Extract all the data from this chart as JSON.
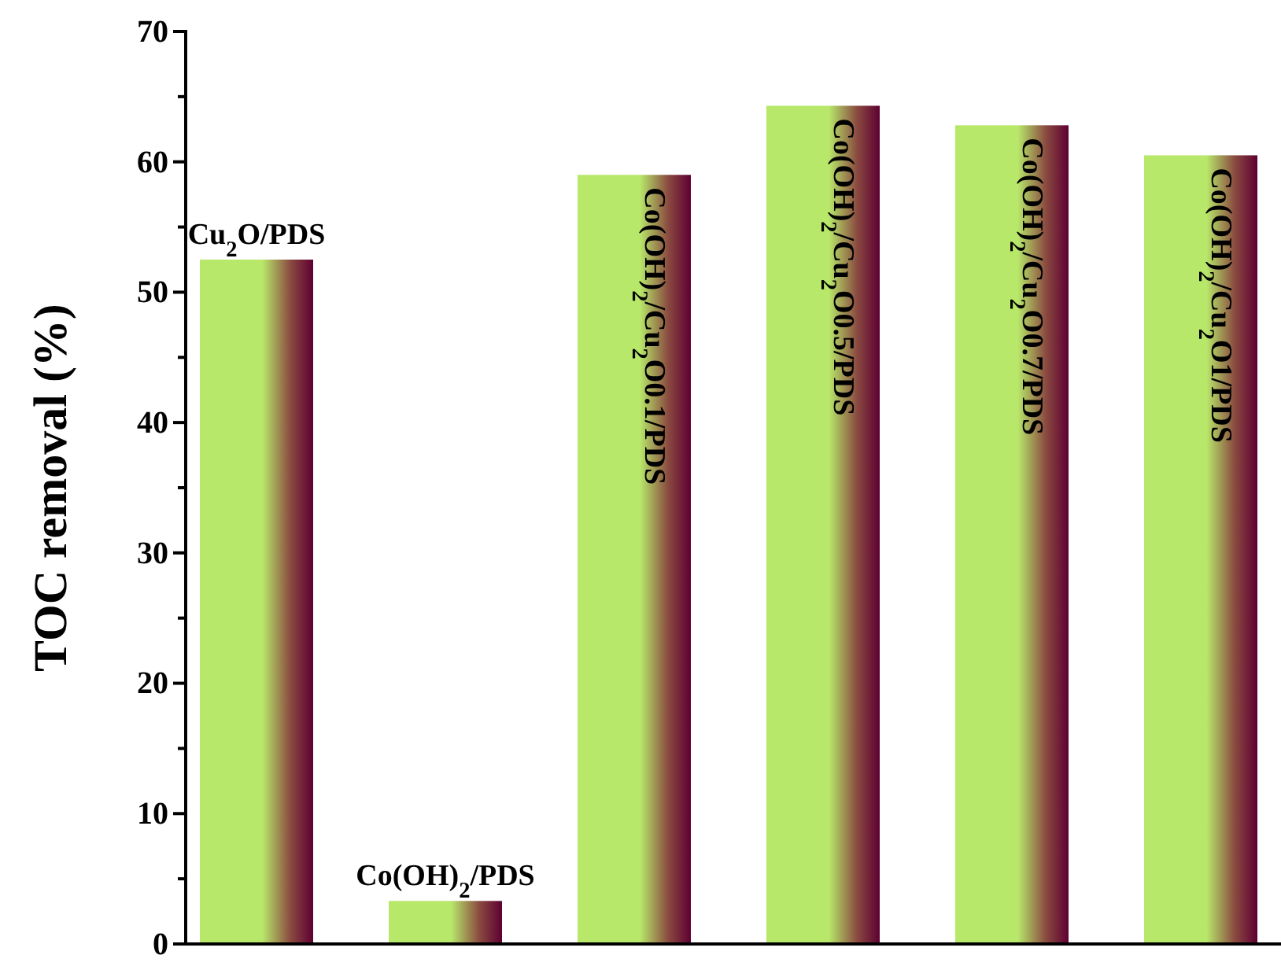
{
  "chart_data": {
    "type": "bar",
    "ylabel": "TOC removal (%)",
    "categories": [
      "Cu$_{2}$O/PDS",
      "Co(OH)$_{2}$/PDS",
      "Co(OH)$_{2}$/Cu$_{2}$O0.1/PDS",
      "Co(OH)$_{2}$/Cu$_{2}$O0.5/PDS",
      "Co(OH)$_{2}$/Cu$_{2}$O0.7/PDS",
      "Co(OH)$_{2}$/Cu$_{2}$O1/PDS"
    ],
    "values": [
      52.5,
      3.3,
      59.0,
      64.3,
      62.8,
      60.5
    ],
    "color": "#b8e86a",
    "ylim": [
      0,
      70
    ],
    "yticks": [
      0,
      10,
      20,
      30,
      40,
      50,
      60,
      70
    ],
    "tick_labels": "y",
    "grid": false
  }
}
